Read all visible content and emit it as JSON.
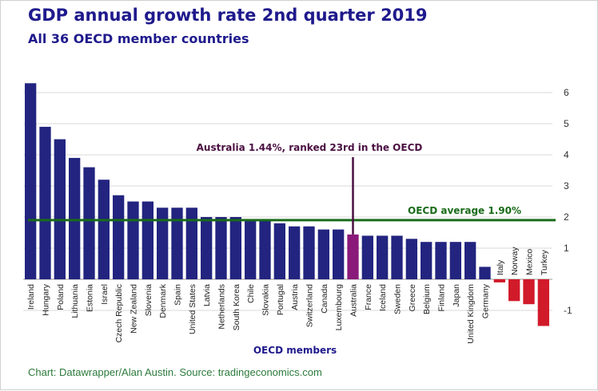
{
  "header": {
    "title": "GDP annual growth rate 2nd quarter 2019",
    "subtitle": "All 36 OECD member countries"
  },
  "footer": {
    "source": "Chart: Datawrapper/Alan Austin. Source: tradingeconomics.com"
  },
  "colors": {
    "bar": "#22247f",
    "highlight": "#8a1a7a",
    "negative": "#d11a2a",
    "average_line": "#1a6b1a",
    "annotation_au": "#4b1042",
    "grid": "#d8d8d8"
  },
  "chart_data": {
    "type": "bar",
    "title": "GDP annual growth rate 2nd quarter 2019",
    "subtitle": "All 36 OECD member countries",
    "xlabel": "OECD members",
    "ylabel": "",
    "ylim": [
      -1.6,
      6.5
    ],
    "yticks": [
      6,
      5,
      4,
      3,
      2,
      1,
      -1
    ],
    "ytick_labels": [
      "6",
      "5",
      "4",
      "3",
      "2",
      "1",
      "-1"
    ],
    "y_axis_position": "right",
    "grid": true,
    "categories": [
      "Ireland",
      "Hungary",
      "Poland",
      "Lithuania",
      "Estonia",
      "Israel",
      "Czech Republic",
      "New Zealand",
      "Slovenia",
      "Denmark",
      "Spain",
      "United States",
      "Latvia",
      "Netherlands",
      "South Korea",
      "Chile",
      "Slovakia",
      "Portugal",
      "Austria",
      "Switzerland",
      "Canada",
      "Luxembourg",
      "Australia",
      "France",
      "Iceland",
      "Sweden",
      "Greece",
      "Belgium",
      "Finland",
      "Japan",
      "United Kingdom",
      "Germany",
      "Italy",
      "Norway",
      "Mexico",
      "Turkey"
    ],
    "values": [
      6.3,
      4.9,
      4.5,
      3.9,
      3.6,
      3.2,
      2.7,
      2.5,
      2.5,
      2.3,
      2.3,
      2.3,
      2.0,
      2.0,
      2.0,
      1.9,
      1.9,
      1.8,
      1.7,
      1.7,
      1.6,
      1.6,
      1.44,
      1.4,
      1.4,
      1.4,
      1.3,
      1.2,
      1.2,
      1.2,
      1.2,
      0.4,
      -0.1,
      -0.7,
      -0.8,
      -1.5
    ],
    "highlight_category": "Australia",
    "average_value": 1.9,
    "annotations": {
      "highlight_label": "Australia 1.44%, ranked 23rd in the OECD",
      "average_label": "OECD average 1.90%"
    }
  }
}
